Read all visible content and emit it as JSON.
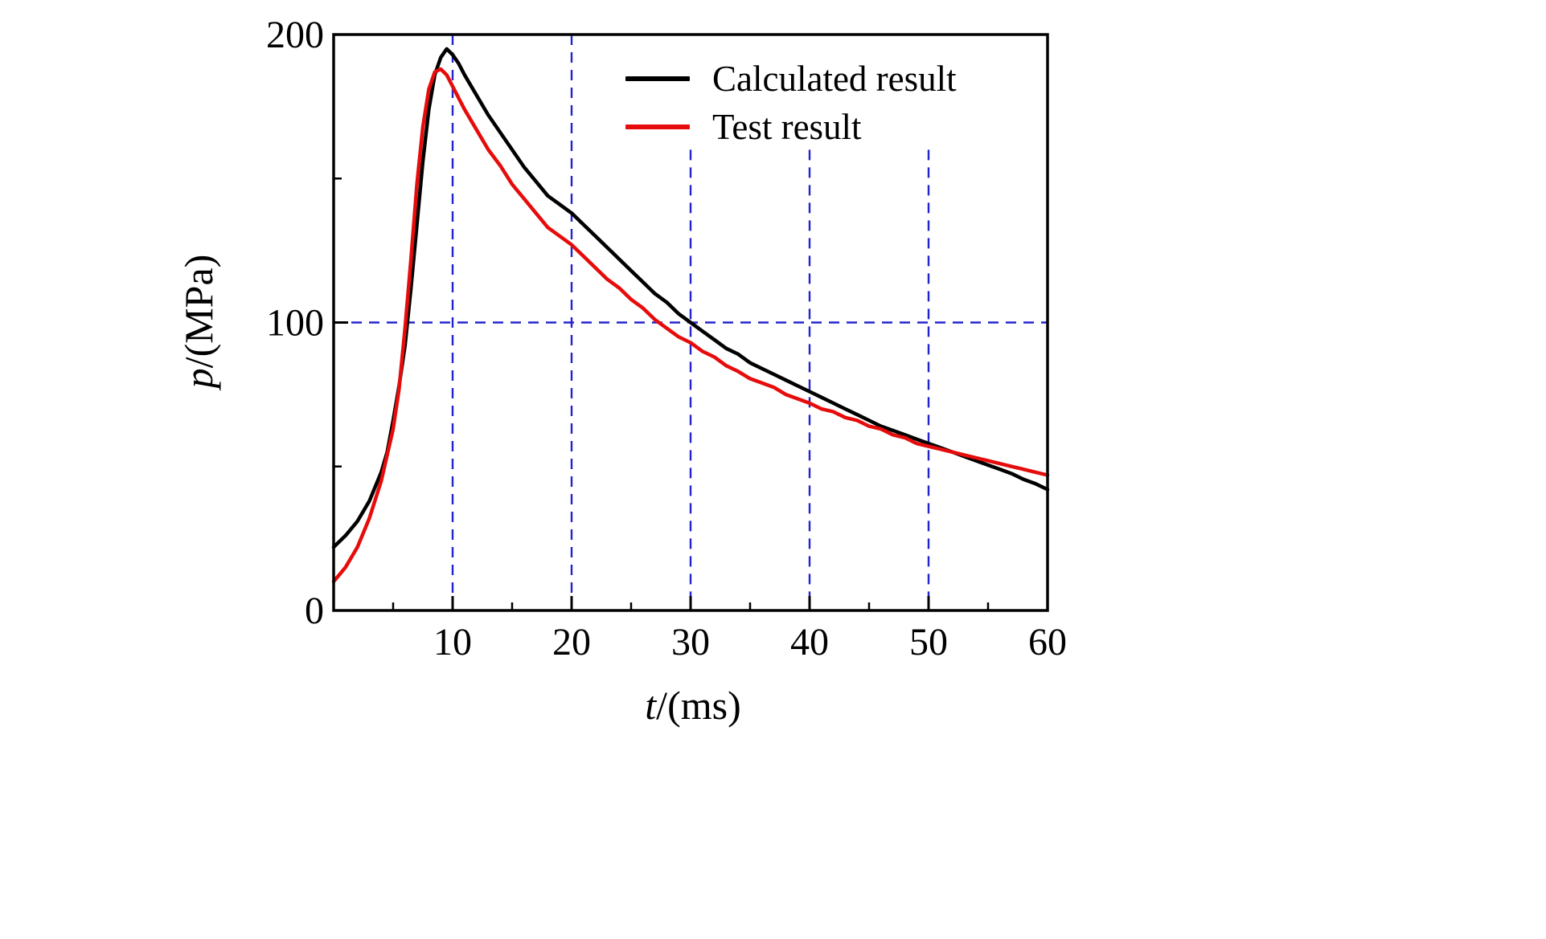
{
  "chart_data": {
    "type": "line",
    "title": "",
    "xlabel": "t/(ms)",
    "xlabel_var": "t",
    "xlabel_rest": "/(ms)",
    "ylabel": "p/(MPa)",
    "ylabel_var": "p",
    "ylabel_rest": "/(MPa)",
    "xlim": [
      0,
      60
    ],
    "ylim": [
      0,
      200
    ],
    "x_ticks": [
      10,
      20,
      30,
      40,
      50,
      60
    ],
    "x_minor_ticks": [
      5,
      15,
      25,
      35,
      45,
      55
    ],
    "y_ticks": [
      0,
      100,
      200
    ],
    "y_minor_ticks": [
      50,
      150
    ],
    "x_tick_labels": [
      "10",
      "20",
      "30",
      "40",
      "50",
      "60"
    ],
    "y_tick_labels": [
      "0",
      "100",
      "200"
    ],
    "grid": {
      "color": "#2323cc",
      "style": "dashed",
      "vertical_full": [
        10,
        20
      ],
      "vertical_partial": [
        30,
        40,
        50
      ],
      "vertical_partial_top_value": 160,
      "horizontal": [
        100
      ]
    },
    "axis_color": "#000000",
    "background": "#ffffff",
    "legend": {
      "position": "top-right-inside",
      "entries": [
        {
          "label": "Calculated result",
          "color": "#000000"
        },
        {
          "label": "Test result",
          "color": "#e60c0c"
        }
      ]
    },
    "series": [
      {
        "name": "Calculated result",
        "color": "#000000",
        "points": [
          [
            0,
            22
          ],
          [
            1,
            26
          ],
          [
            2,
            31
          ],
          [
            3,
            38
          ],
          [
            4,
            48
          ],
          [
            4.5,
            55
          ],
          [
            5,
            66
          ],
          [
            5.5,
            78
          ],
          [
            6,
            92
          ],
          [
            6.5,
            112
          ],
          [
            7,
            134
          ],
          [
            7.5,
            156
          ],
          [
            8,
            174
          ],
          [
            8.5,
            186
          ],
          [
            9,
            192
          ],
          [
            9.5,
            195
          ],
          [
            10,
            193
          ],
          [
            10.5,
            190
          ],
          [
            11,
            186
          ],
          [
            12,
            179
          ],
          [
            13,
            172
          ],
          [
            14,
            166
          ],
          [
            15,
            160
          ],
          [
            16,
            154
          ],
          [
            17,
            149
          ],
          [
            18,
            144
          ],
          [
            19,
            141
          ],
          [
            20,
            138
          ],
          [
            21,
            134
          ],
          [
            22,
            130
          ],
          [
            23,
            126
          ],
          [
            24,
            122
          ],
          [
            25,
            118
          ],
          [
            26,
            114
          ],
          [
            27,
            110
          ],
          [
            28,
            107
          ],
          [
            29,
            103
          ],
          [
            30,
            100
          ],
          [
            31,
            97
          ],
          [
            32,
            94
          ],
          [
            33,
            91
          ],
          [
            34,
            89
          ],
          [
            35,
            86
          ],
          [
            36,
            84
          ],
          [
            37,
            82
          ],
          [
            38,
            80
          ],
          [
            39,
            78
          ],
          [
            40,
            76
          ],
          [
            41,
            74
          ],
          [
            42,
            72
          ],
          [
            43,
            70
          ],
          [
            44,
            68
          ],
          [
            45,
            66
          ],
          [
            46,
            64
          ],
          [
            47,
            62.5
          ],
          [
            48,
            61
          ],
          [
            49,
            59.5
          ],
          [
            50,
            58
          ],
          [
            51,
            56.5
          ],
          [
            52,
            55
          ],
          [
            53,
            53.5
          ],
          [
            54,
            52
          ],
          [
            55,
            50.5
          ],
          [
            56,
            49
          ],
          [
            57,
            47.5
          ],
          [
            58,
            45.5
          ],
          [
            59,
            44
          ],
          [
            60,
            42
          ]
        ]
      },
      {
        "name": "Test result",
        "color": "#e60c0c",
        "points": [
          [
            0,
            10
          ],
          [
            1,
            15
          ],
          [
            2,
            22
          ],
          [
            3,
            32
          ],
          [
            4,
            45
          ],
          [
            4.5,
            54
          ],
          [
            5,
            63
          ],
          [
            5.5,
            77
          ],
          [
            6,
            98
          ],
          [
            6.5,
            122
          ],
          [
            7,
            148
          ],
          [
            7.5,
            168
          ],
          [
            8,
            181
          ],
          [
            8.5,
            187
          ],
          [
            9,
            188
          ],
          [
            9.5,
            186
          ],
          [
            10,
            182
          ],
          [
            10.5,
            178
          ],
          [
            11,
            174
          ],
          [
            12,
            167
          ],
          [
            13,
            160
          ],
          [
            14,
            154.5
          ],
          [
            15,
            148
          ],
          [
            16,
            143
          ],
          [
            17,
            138
          ],
          [
            18,
            133
          ],
          [
            19,
            130
          ],
          [
            20,
            127
          ],
          [
            21,
            123
          ],
          [
            22,
            119
          ],
          [
            23,
            115
          ],
          [
            24,
            112
          ],
          [
            25,
            108
          ],
          [
            26,
            105
          ],
          [
            27,
            101
          ],
          [
            28,
            98
          ],
          [
            29,
            95
          ],
          [
            30,
            93
          ],
          [
            31,
            90
          ],
          [
            32,
            88
          ],
          [
            33,
            85
          ],
          [
            34,
            83
          ],
          [
            35,
            80.5
          ],
          [
            36,
            79
          ],
          [
            37,
            77.5
          ],
          [
            38,
            75
          ],
          [
            39,
            73.5
          ],
          [
            40,
            72
          ],
          [
            41,
            70
          ],
          [
            42,
            69
          ],
          [
            43,
            67
          ],
          [
            44,
            66
          ],
          [
            45,
            64
          ],
          [
            46,
            63
          ],
          [
            47,
            61
          ],
          [
            48,
            60
          ],
          [
            49,
            58
          ],
          [
            50,
            57
          ],
          [
            51,
            56
          ],
          [
            52,
            55
          ],
          [
            53,
            54
          ],
          [
            54,
            53
          ],
          [
            55,
            52
          ],
          [
            56,
            51
          ],
          [
            57,
            50
          ],
          [
            58,
            49
          ],
          [
            59,
            48
          ],
          [
            60,
            47
          ]
        ]
      }
    ]
  }
}
